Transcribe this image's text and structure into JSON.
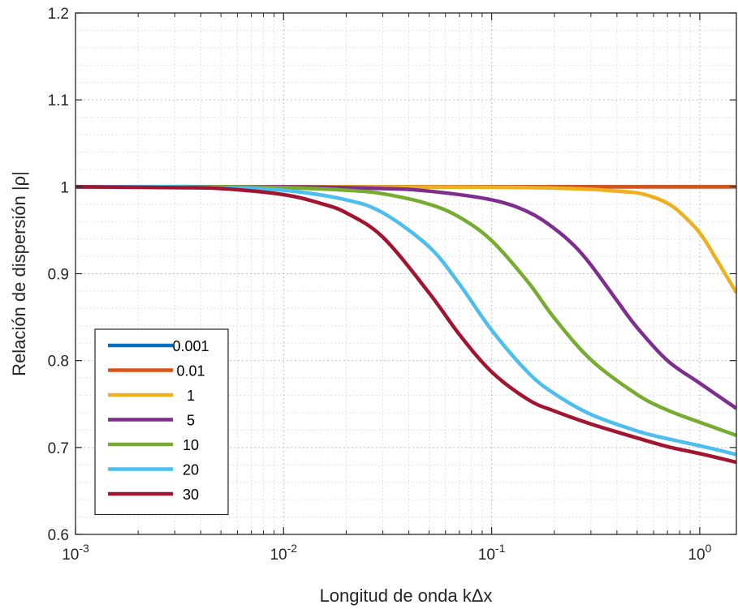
{
  "chart_data": {
    "type": "line",
    "xlabel": "Longitud de onda kΔx",
    "ylabel": "Relación de dispersión |ρ|",
    "xscale": "log",
    "xlim": [
      0.001,
      1.5
    ],
    "ylim": [
      0.6,
      1.2
    ],
    "grid": true,
    "minor_grid": true,
    "legend_position": "bottom-left",
    "x_ticks": [
      {
        "value": 0.001,
        "base": "10",
        "exp": "-3"
      },
      {
        "value": 0.01,
        "base": "10",
        "exp": "-2"
      },
      {
        "value": 0.1,
        "base": "10",
        "exp": "-1"
      },
      {
        "value": 1,
        "base": "10",
        "exp": "0"
      }
    ],
    "y_ticks": [
      {
        "value": 0.6,
        "label": "0.6"
      },
      {
        "value": 0.7,
        "label": "0.7"
      },
      {
        "value": 0.8,
        "label": "0.8"
      },
      {
        "value": 0.9,
        "label": "0.9"
      },
      {
        "value": 1.0,
        "label": "1"
      },
      {
        "value": 1.1,
        "label": "1.1"
      },
      {
        "value": 1.2,
        "label": "1.2"
      }
    ],
    "series": [
      {
        "name": "0.001",
        "color": "#0072BD",
        "x": [
          0.001,
          1.5
        ],
        "y": [
          1.0,
          1.0
        ]
      },
      {
        "name": "0.01",
        "color": "#D95319",
        "x": [
          0.001,
          1.5
        ],
        "y": [
          1.0,
          1.0
        ]
      },
      {
        "name": "1",
        "color": "#EDB120",
        "x": [
          0.001,
          0.01,
          0.1,
          0.2,
          0.3,
          0.4,
          0.5,
          0.6,
          0.7,
          0.8,
          1.0,
          1.2,
          1.5
        ],
        "y": [
          1.0,
          1.0,
          0.9995,
          0.9985,
          0.997,
          0.995,
          0.993,
          0.988,
          0.981,
          0.971,
          0.947,
          0.917,
          0.878
        ]
      },
      {
        "name": "5",
        "color": "#7E2F8E",
        "x": [
          0.001,
          0.01,
          0.03,
          0.05,
          0.1,
          0.15,
          0.2,
          0.25,
          0.3,
          0.4,
          0.5,
          0.7,
          1.0,
          1.5
        ],
        "y": [
          1.0,
          1.0,
          0.998,
          0.995,
          0.985,
          0.971,
          0.952,
          0.932,
          0.91,
          0.869,
          0.838,
          0.8,
          0.774,
          0.745
        ]
      },
      {
        "name": "10",
        "color": "#77AC30",
        "x": [
          0.001,
          0.005,
          0.01,
          0.02,
          0.03,
          0.05,
          0.07,
          0.1,
          0.15,
          0.2,
          0.3,
          0.5,
          0.7,
          1.0,
          1.5
        ],
        "y": [
          1.0,
          1.0,
          0.999,
          0.996,
          0.992,
          0.98,
          0.965,
          0.938,
          0.89,
          0.849,
          0.801,
          0.761,
          0.743,
          0.729,
          0.714
        ]
      },
      {
        "name": "20",
        "color": "#4DBEEE",
        "x": [
          0.001,
          0.003,
          0.005,
          0.01,
          0.02,
          0.03,
          0.05,
          0.07,
          0.1,
          0.15,
          0.2,
          0.3,
          0.5,
          0.7,
          1.0,
          1.5
        ],
        "y": [
          1.0,
          1.0,
          0.999,
          0.996,
          0.985,
          0.97,
          0.931,
          0.888,
          0.835,
          0.786,
          0.762,
          0.738,
          0.719,
          0.71,
          0.702,
          0.692
        ]
      },
      {
        "name": "30",
        "color": "#A2142F",
        "x": [
          0.001,
          0.003,
          0.005,
          0.01,
          0.015,
          0.02,
          0.03,
          0.05,
          0.07,
          0.1,
          0.15,
          0.2,
          0.3,
          0.5,
          0.7,
          1.0,
          1.5
        ],
        "y": [
          1.0,
          0.999,
          0.998,
          0.991,
          0.981,
          0.97,
          0.942,
          0.878,
          0.83,
          0.787,
          0.755,
          0.742,
          0.727,
          0.711,
          0.701,
          0.693,
          0.683
        ]
      }
    ]
  }
}
